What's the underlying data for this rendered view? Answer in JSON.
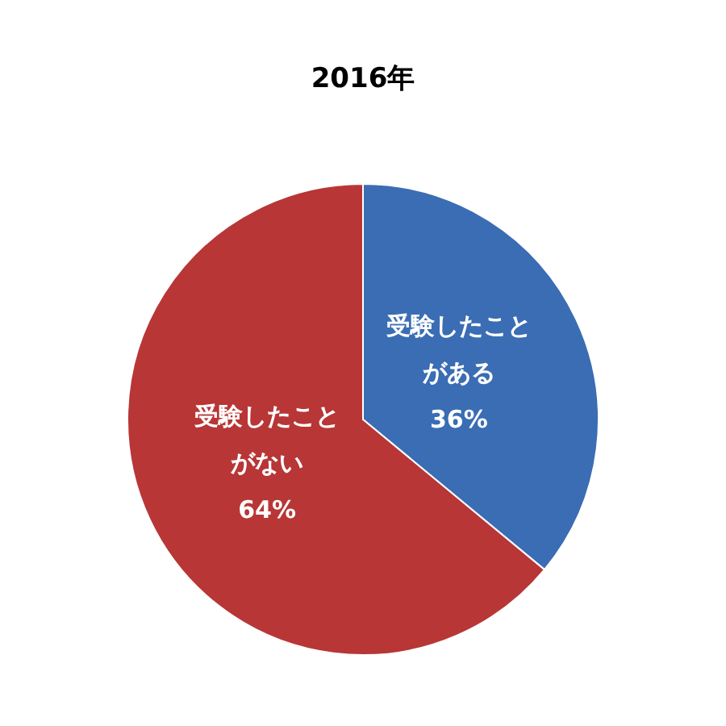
{
  "chart_data": {
    "type": "pie",
    "title": "2016年",
    "categories": [
      "受験したことがある",
      "受験したことがない"
    ],
    "values": [
      36,
      64
    ],
    "colors": [
      "#3a6db3",
      "#b83636"
    ],
    "value_labels": [
      "36%",
      "64%"
    ]
  }
}
